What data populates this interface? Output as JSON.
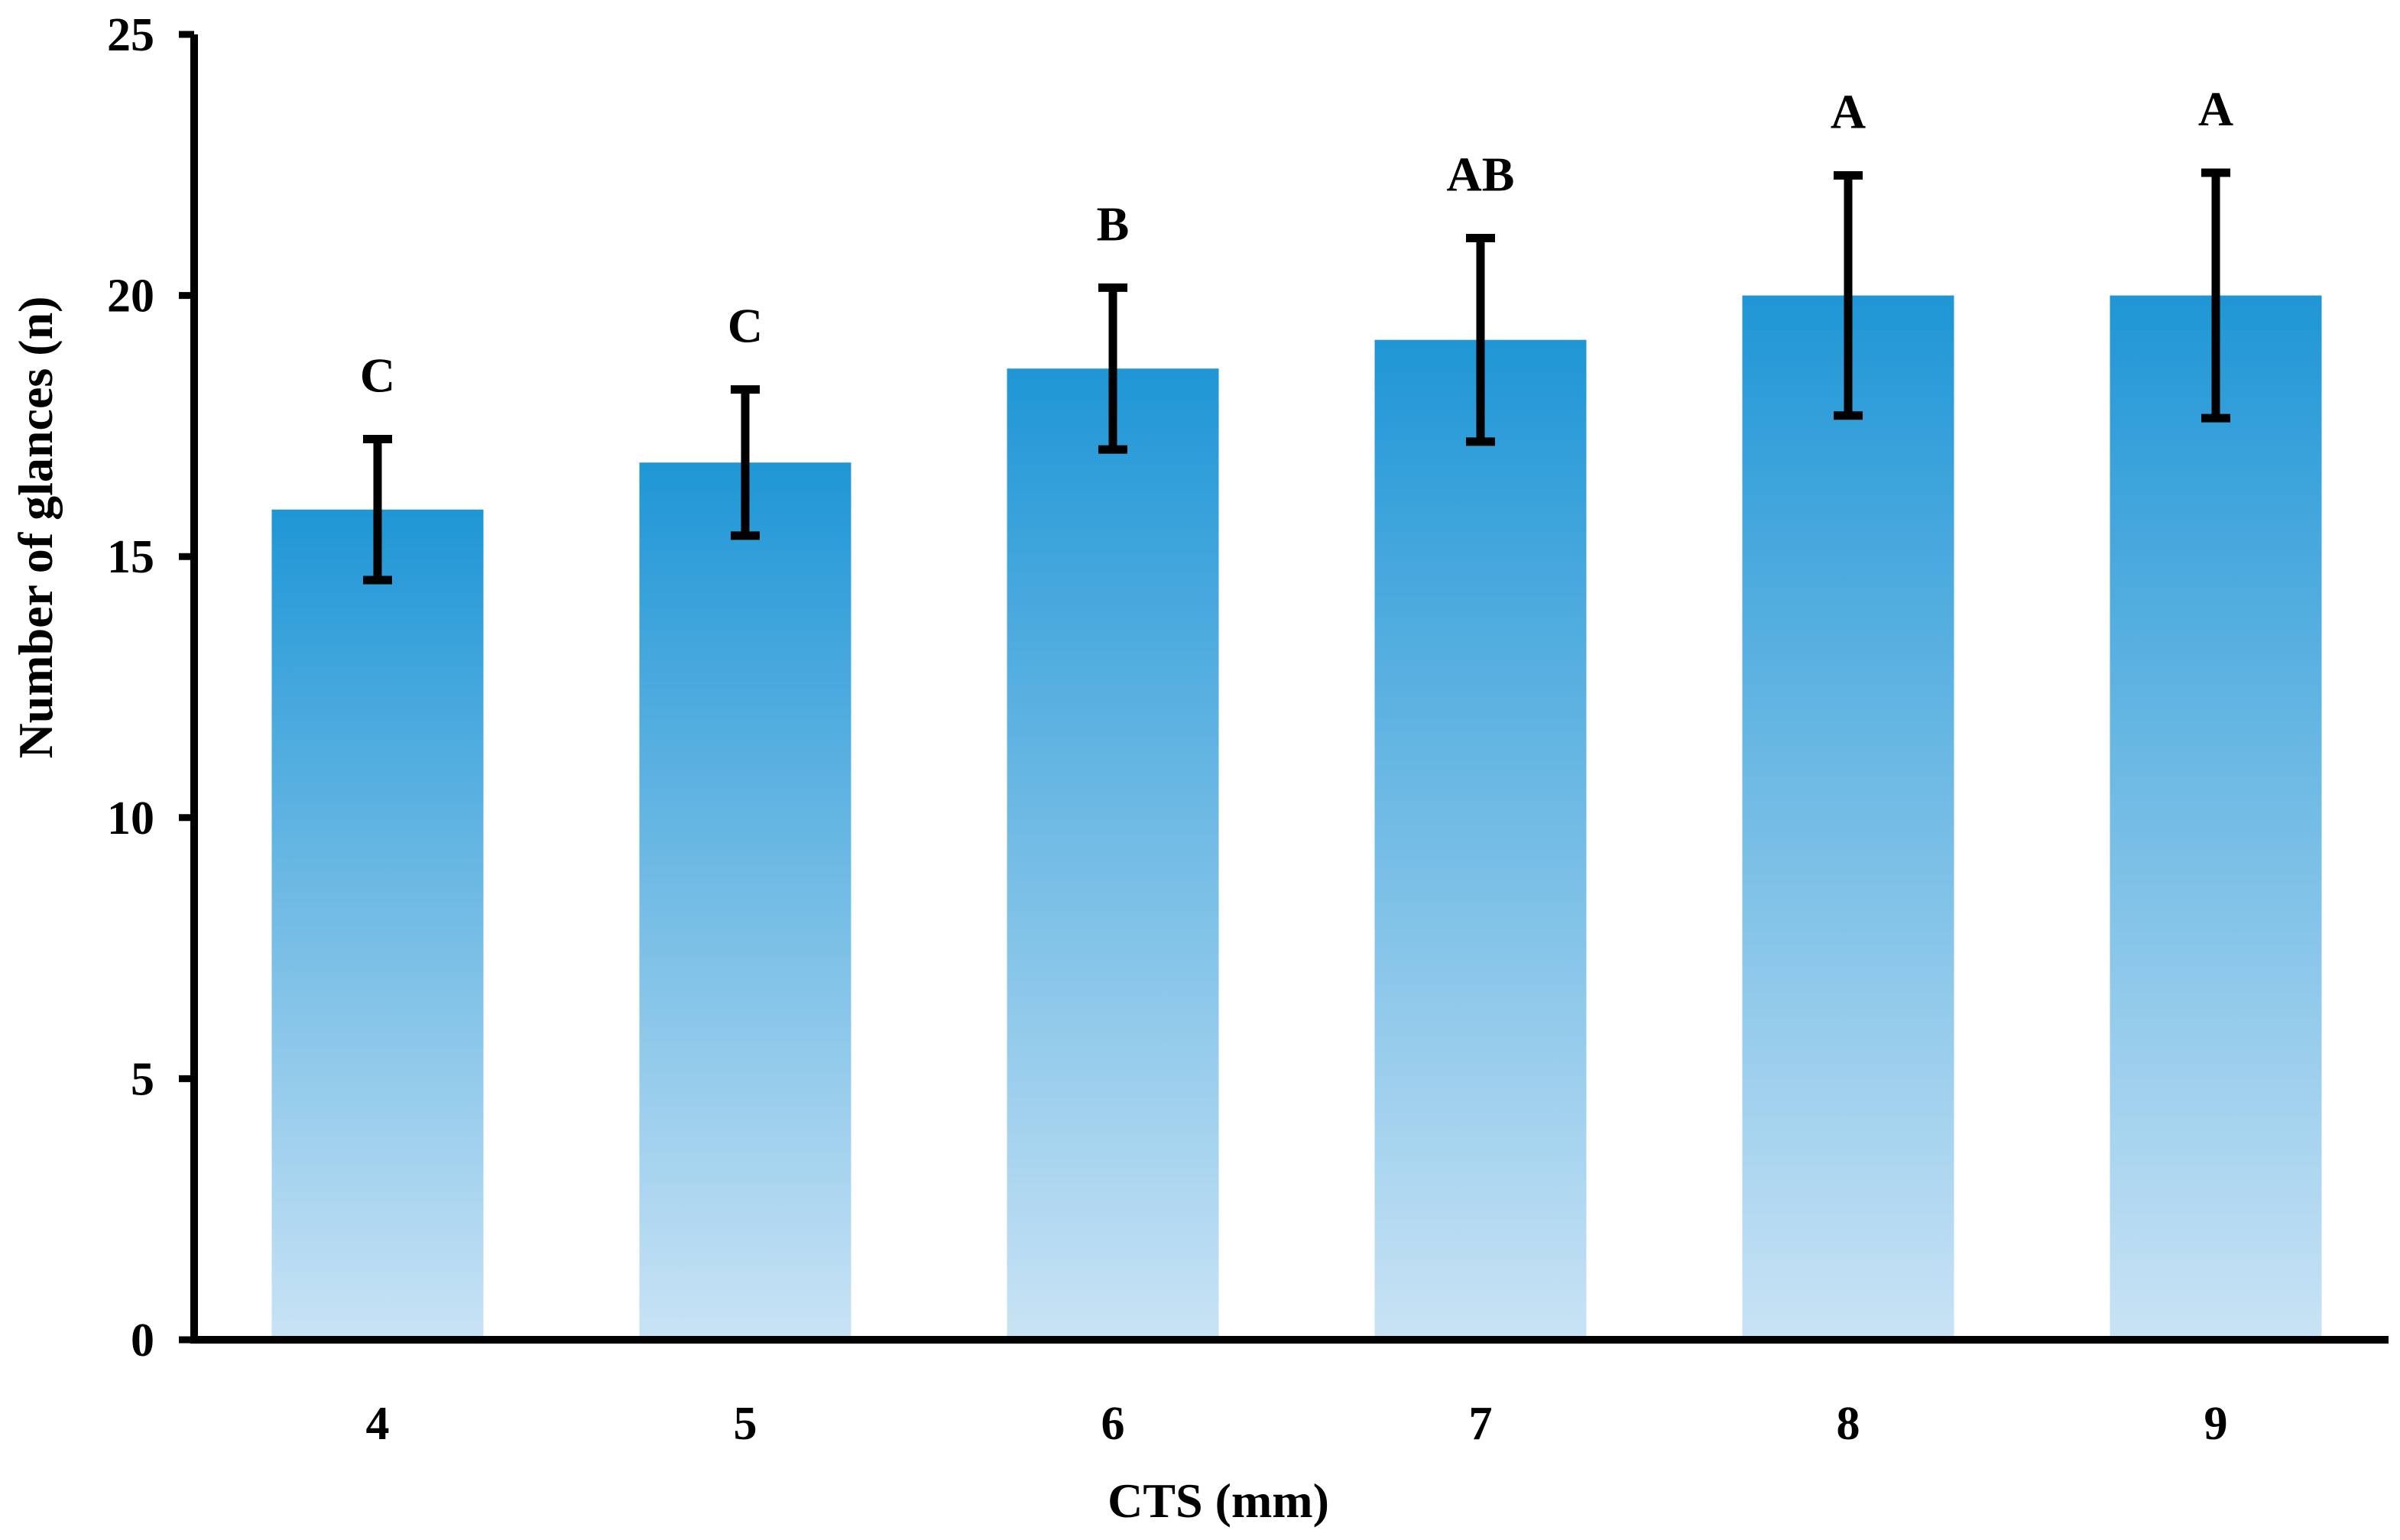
{
  "chart_data": {
    "type": "bar",
    "title": "",
    "xlabel": "CTS (mm)",
    "ylabel": "Number of glances (n)",
    "categories": [
      "4",
      "5",
      "6",
      "7",
      "8",
      "9"
    ],
    "values": [
      15.9,
      16.8,
      18.6,
      19.15,
      20.0,
      20.0
    ],
    "errors": [
      1.35,
      1.4,
      1.55,
      1.95,
      2.3,
      2.35
    ],
    "significance": [
      "C",
      "C",
      "B",
      "AB",
      "A",
      "A"
    ],
    "ylim": [
      0,
      25
    ],
    "yticks": [
      "0",
      "5",
      "10",
      "15",
      "20",
      "25"
    ],
    "grid": false,
    "legend": "none",
    "colors": {
      "bar_top": "#1f96d6",
      "bar_bottom": "#c9e3f5",
      "axis": "#000000"
    }
  }
}
